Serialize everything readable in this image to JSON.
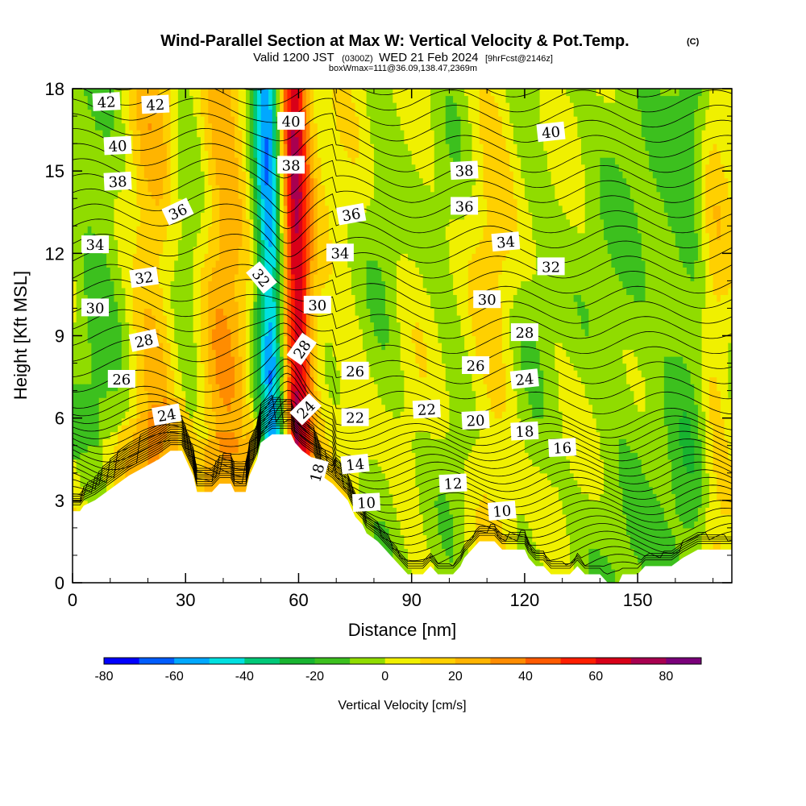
{
  "title": {
    "main": "Wind-Parallel Section at Max W: Vertical Velocity & Pot.Temp.",
    "copyright": "(C)",
    "valid_prefix": "Valid 1200 JST",
    "valid_z": "(0300Z)",
    "valid_date": "WED 21 Feb 2024",
    "forecast": "[9hrFcst@2146z]",
    "box": "boxWmax=111@36.09,138.47,2369m"
  },
  "chart_data": {
    "type": "heatmap",
    "xlabel": "Distance [nm]",
    "ylabel": "Height [Kft MSL]",
    "xlim": [
      0,
      175
    ],
    "ylim": [
      0,
      18
    ],
    "x_ticks": [
      "0",
      "30",
      "60",
      "90",
      "120",
      "150"
    ],
    "y_ticks": [
      "0",
      "3",
      "6",
      "9",
      "12",
      "15",
      "18"
    ],
    "colorbar": {
      "label": "Vertical Velocity [cm/s]",
      "min": -80,
      "max": 90,
      "step": 10,
      "tick_labels": [
        "-80",
        "-60",
        "-40",
        "-20",
        "0",
        "20",
        "40",
        "60",
        "80"
      ],
      "colors": [
        "#0000ff",
        "#005cff",
        "#00a8ff",
        "#00e0e0",
        "#00c878",
        "#18b430",
        "#3cc01e",
        "#90dc00",
        "#f0f000",
        "#ffd000",
        "#ffb400",
        "#ff8c00",
        "#ff5a00",
        "#ff1e00",
        "#d80018",
        "#a80050",
        "#7a007a"
      ]
    },
    "terrain": [
      [
        0,
        2.6
      ],
      [
        2,
        2.6
      ],
      [
        3,
        2.8
      ],
      [
        6,
        3.0
      ],
      [
        9,
        3.3
      ],
      [
        12,
        3.6
      ],
      [
        15,
        3.9
      ],
      [
        19,
        4.2
      ],
      [
        23,
        4.5
      ],
      [
        26,
        4.8
      ],
      [
        29,
        4.8
      ],
      [
        30,
        4.5
      ],
      [
        32,
        3.9
      ],
      [
        33,
        3.3
      ],
      [
        37,
        3.3
      ],
      [
        39,
        3.6
      ],
      [
        42,
        3.6
      ],
      [
        43,
        3.3
      ],
      [
        46,
        3.3
      ],
      [
        47,
        3.9
      ],
      [
        49,
        4.5
      ],
      [
        50,
        5.1
      ],
      [
        53,
        5.4
      ],
      [
        58,
        5.4
      ],
      [
        59,
        5.1
      ],
      [
        61,
        4.8
      ],
      [
        64,
        4.5
      ],
      [
        66,
        3.9
      ],
      [
        69,
        3.6
      ],
      [
        71,
        3.3
      ],
      [
        73,
        3.0
      ],
      [
        74,
        2.7
      ],
      [
        75,
        2.4
      ],
      [
        77,
        2.1
      ],
      [
        78,
        1.8
      ],
      [
        81,
        1.5
      ],
      [
        83,
        1.2
      ],
      [
        85,
        0.9
      ],
      [
        87,
        0.6
      ],
      [
        89,
        0.3
      ],
      [
        91,
        0.3
      ],
      [
        93,
        0.3
      ],
      [
        95,
        0.6
      ],
      [
        97,
        0.3
      ],
      [
        101,
        0.3
      ],
      [
        103,
        0.6
      ],
      [
        104,
        0.9
      ],
      [
        106,
        1.2
      ],
      [
        108,
        1.5
      ],
      [
        112,
        1.5
      ],
      [
        114,
        1.2
      ],
      [
        117,
        1.2
      ],
      [
        120,
        1.2
      ],
      [
        121,
        0.9
      ],
      [
        123,
        0.6
      ],
      [
        125,
        0.6
      ],
      [
        127,
        0.3
      ],
      [
        130,
        0.3
      ],
      [
        132,
        0.3
      ],
      [
        134,
        0.6
      ],
      [
        136,
        0.3
      ],
      [
        140,
        0.3
      ],
      [
        142,
        0.0
      ],
      [
        145,
        0.0
      ],
      [
        146,
        0.3
      ],
      [
        150,
        0.3
      ],
      [
        152,
        0.6
      ],
      [
        159,
        0.6
      ],
      [
        162,
        0.9
      ],
      [
        166,
        1.2
      ],
      [
        175,
        1.2
      ]
    ],
    "w_structure": [
      {
        "type": "updraft",
        "x": 60,
        "width": 4,
        "w": 65
      },
      {
        "type": "downdraft",
        "x": 53,
        "width": 4,
        "w": -65
      },
      {
        "type": "updraft",
        "x": 39,
        "width": 7,
        "w": 25
      },
      {
        "type": "downdraft",
        "x": 31,
        "width": 7,
        "w": -20
      },
      {
        "type": "updraft",
        "x": 22,
        "width": 7,
        "w": 20
      },
      {
        "type": "downdraft",
        "x": 7,
        "width": 9,
        "w": -18
      },
      {
        "type": "downdraft",
        "x": 82,
        "width": 6,
        "w": -12
      },
      {
        "type": "downdraft",
        "x": 102,
        "width": 8,
        "w": -12
      },
      {
        "type": "downdraft",
        "x": 120,
        "width": 8,
        "w": -14
      },
      {
        "type": "downdraft",
        "x": 146,
        "width": 14,
        "w": -14
      },
      {
        "type": "downdraft",
        "x": 165,
        "width": 8,
        "w": -18
      },
      {
        "type": "updraft",
        "x": 112,
        "width": 8,
        "w": 15
      },
      {
        "type": "updraft",
        "x": 170,
        "width": 4,
        "w": 18
      }
    ],
    "isentrope_labels": [
      {
        "text": "42",
        "x": 9,
        "y": 17.5,
        "angle": -3
      },
      {
        "text": "42",
        "x": 22,
        "y": 17.4,
        "angle": -3
      },
      {
        "text": "40",
        "x": 12,
        "y": 15.9,
        "angle": -3
      },
      {
        "text": "38",
        "x": 12,
        "y": 14.6,
        "angle": -3
      },
      {
        "text": "36",
        "x": 28,
        "y": 13.5,
        "angle": -25
      },
      {
        "text": "34",
        "x": 6,
        "y": 12.3,
        "angle": 0
      },
      {
        "text": "32",
        "x": 19,
        "y": 11.1,
        "angle": -8
      },
      {
        "text": "30",
        "x": 6,
        "y": 10.0,
        "angle": 0
      },
      {
        "text": "28",
        "x": 19,
        "y": 8.8,
        "angle": -12
      },
      {
        "text": "26",
        "x": 13,
        "y": 7.4,
        "angle": 0
      },
      {
        "text": "24",
        "x": 25,
        "y": 6.1,
        "angle": -10
      },
      {
        "text": "32",
        "x": 50,
        "y": 11.1,
        "angle": 50
      },
      {
        "text": "40",
        "x": 58,
        "y": 16.8,
        "angle": 0
      },
      {
        "text": "38",
        "x": 58,
        "y": 15.2,
        "angle": 0
      },
      {
        "text": "36",
        "x": 74,
        "y": 13.4,
        "angle": -10
      },
      {
        "text": "34",
        "x": 71,
        "y": 12.0,
        "angle": 0
      },
      {
        "text": "30",
        "x": 65,
        "y": 10.1,
        "angle": 0
      },
      {
        "text": "28",
        "x": 61,
        "y": 8.5,
        "angle": -55
      },
      {
        "text": "26",
        "x": 75,
        "y": 7.7,
        "angle": 0
      },
      {
        "text": "24",
        "x": 62,
        "y": 6.3,
        "angle": -45
      },
      {
        "text": "22",
        "x": 75,
        "y": 6.0,
        "angle": 0
      },
      {
        "text": "18",
        "x": 65,
        "y": 4.0,
        "angle": -75
      },
      {
        "text": "14",
        "x": 75,
        "y": 4.3,
        "angle": -6
      },
      {
        "text": "10",
        "x": 78,
        "y": 2.9,
        "angle": -3
      },
      {
        "text": "12",
        "x": 101,
        "y": 3.6,
        "angle": -3
      },
      {
        "text": "10",
        "x": 114,
        "y": 2.6,
        "angle": -5
      },
      {
        "text": "40",
        "x": 127,
        "y": 16.4,
        "angle": -6
      },
      {
        "text": "38",
        "x": 104,
        "y": 15.0,
        "angle": -3
      },
      {
        "text": "36",
        "x": 104,
        "y": 13.7,
        "angle": 0
      },
      {
        "text": "34",
        "x": 115,
        "y": 12.4,
        "angle": -5
      },
      {
        "text": "32",
        "x": 127,
        "y": 11.5,
        "angle": 0
      },
      {
        "text": "30",
        "x": 110,
        "y": 10.3,
        "angle": 0
      },
      {
        "text": "28",
        "x": 120,
        "y": 9.1,
        "angle": 0
      },
      {
        "text": "26",
        "x": 107,
        "y": 7.9,
        "angle": 0
      },
      {
        "text": "24",
        "x": 120,
        "y": 7.4,
        "angle": -6
      },
      {
        "text": "22",
        "x": 94,
        "y": 6.3,
        "angle": -3
      },
      {
        "text": "20",
        "x": 107,
        "y": 5.9,
        "angle": -3
      },
      {
        "text": "18",
        "x": 120,
        "y": 5.5,
        "angle": -3
      },
      {
        "text": "16",
        "x": 130,
        "y": 4.9,
        "angle": -3
      }
    ]
  }
}
